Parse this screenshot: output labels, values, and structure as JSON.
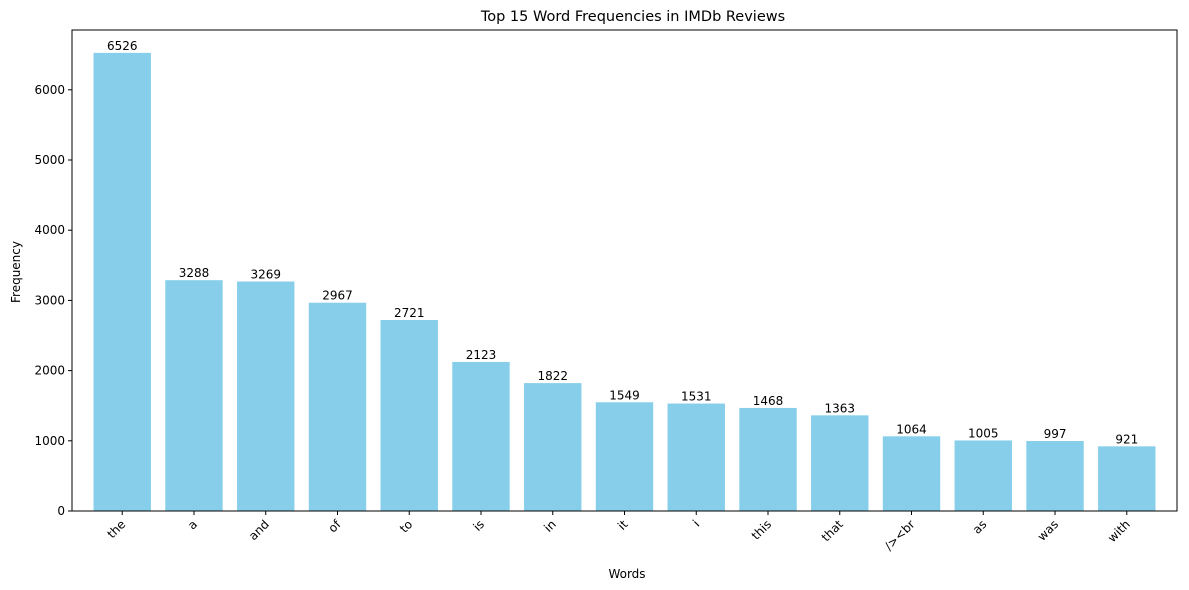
{
  "colors": {
    "bar": "#87ceeb",
    "axis": "#000000",
    "background": "#ffffff"
  },
  "chart_data": {
    "type": "bar",
    "title": "Top 15 Word Frequencies in IMDb Reviews",
    "xlabel": "Words",
    "ylabel": "Frequency",
    "categories": [
      "the",
      "a",
      "and",
      "of",
      "to",
      "is",
      "in",
      "it",
      "i",
      "this",
      "that",
      "/><br",
      "as",
      "was",
      "with"
    ],
    "values": [
      6526,
      3288,
      3269,
      2967,
      2721,
      2123,
      1822,
      1549,
      1531,
      1468,
      1363,
      1064,
      1005,
      997,
      921
    ],
    "data_labels": [
      "6526",
      "3288",
      "3269",
      "2967",
      "2721",
      "2123",
      "1822",
      "1549",
      "1531",
      "1468",
      "1363",
      "1064",
      "1005",
      "997",
      "921"
    ],
    "ylim": [
      0,
      6852
    ],
    "yticks": [
      0,
      1000,
      2000,
      3000,
      4000,
      5000,
      6000
    ],
    "ytick_labels": [
      "0",
      "1000",
      "2000",
      "3000",
      "4000",
      "5000",
      "6000"
    ],
    "x_tick_rotation": 45,
    "grid": false,
    "legend": "none"
  }
}
